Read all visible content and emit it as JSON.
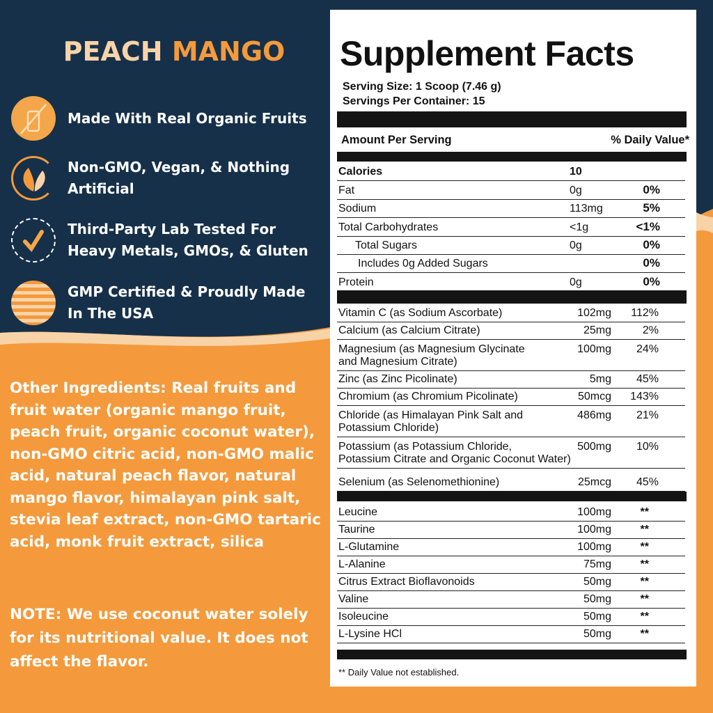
{
  "colors": {
    "navy": "#16304a",
    "orange": "#f49a3c",
    "peach": "#f9d3a8"
  },
  "left": {
    "title_part1": "PEACH",
    "title_part2": "MANGO",
    "features": [
      {
        "icon": "organic-fruit-icon",
        "text": "Made With Real Organic Fruits"
      },
      {
        "icon": "leaf-icon",
        "text": "Non-GMO, Vegan, & Nothing Artificial"
      },
      {
        "icon": "checkmark-icon",
        "text": "Third-Party Lab Tested For Heavy Metals, GMOs, & Gluten"
      },
      {
        "icon": "usa-flag-icon",
        "text": "GMP Certified & Proudly Made In The USA"
      }
    ],
    "other_ingredients": "Other Ingredients: Real fruits and fruit water (organic mango fruit, peach fruit, organic coconut water), non-GMO citric acid, non-GMO malic acid, natural peach flavor, natural mango flavor, himalayan pink salt, stevia leaf extract, non-GMO tartaric acid, monk fruit extract, silica",
    "note": "NOTE: We use coconut water solely for its nutritional value. It does not affect the flavor."
  },
  "facts": {
    "title": "Supplement Facts",
    "serving_size": "Serving Size: 1 Scoop (7.46 g)",
    "servings_per_container": "Servings Per Container: 15",
    "amount_header": "Amount Per Serving",
    "dv_header": "% Daily Value*",
    "macros": [
      {
        "name": "Calories",
        "amount": "10",
        "dv": ""
      },
      {
        "name": "Fat",
        "amount": "0g",
        "dv": "0%"
      },
      {
        "name": "Sodium",
        "amount": "113mg",
        "dv": "5%"
      },
      {
        "name": "Total Carbohydrates",
        "amount": "<1g",
        "dv": "<1%"
      },
      {
        "name": "Total Sugars",
        "amount": "0g",
        "dv": "0%"
      },
      {
        "name": "Includes 0g Added Sugars",
        "amount": "",
        "dv": "0%"
      },
      {
        "name": "Protein",
        "amount": "0g",
        "dv": "0%"
      }
    ],
    "vitamins": [
      {
        "name": "Vitamin C (as Sodium Ascorbate)",
        "amount": "102mg",
        "dv": "112%"
      },
      {
        "name": "Calcium (as Calcium Citrate)",
        "amount": "25mg",
        "dv": "2%"
      },
      {
        "name": "Magnesium (as Magnesium Glycinate",
        "name2": "and Magnesium Citrate)",
        "amount": "100mg",
        "dv": "24%"
      },
      {
        "name": "Zinc (as Zinc Picolinate)",
        "amount": "5mg",
        "dv": "45%"
      },
      {
        "name": "Chromium (as Chromium Picolinate)",
        "amount": "50mcg",
        "dv": "143%"
      },
      {
        "name": "Chloride (as Himalayan Pink Salt and",
        "name2": "Potassium Chloride)",
        "amount": "486mg",
        "dv": "21%"
      },
      {
        "name": "Potassium (as Potassium Chloride,",
        "name2": "Potassium Citrate and Organic Coconut Water)",
        "amount": "500mg",
        "dv": "10%"
      },
      {
        "name": "Selenium (as Selenomethionine)",
        "amount": "25mcg",
        "dv": "45%"
      }
    ],
    "aminos": [
      {
        "name": "Leucine",
        "amount": "100mg",
        "dv": "**"
      },
      {
        "name": "Taurine",
        "amount": "100mg",
        "dv": "**"
      },
      {
        "name": "L-Glutamine",
        "amount": "100mg",
        "dv": "**"
      },
      {
        "name": "L-Alanine",
        "amount": "75mg",
        "dv": "**"
      },
      {
        "name": "Citrus Extract Bioflavonoids",
        "amount": "50mg",
        "dv": "**"
      },
      {
        "name": "Valine",
        "amount": "50mg",
        "dv": "**"
      },
      {
        "name": "Isoleucine",
        "amount": "50mg",
        "dv": "**"
      },
      {
        "name": "L-Lysine HCl",
        "amount": "50mg",
        "dv": "**"
      }
    ],
    "footnote": "** Daily Value not established."
  }
}
